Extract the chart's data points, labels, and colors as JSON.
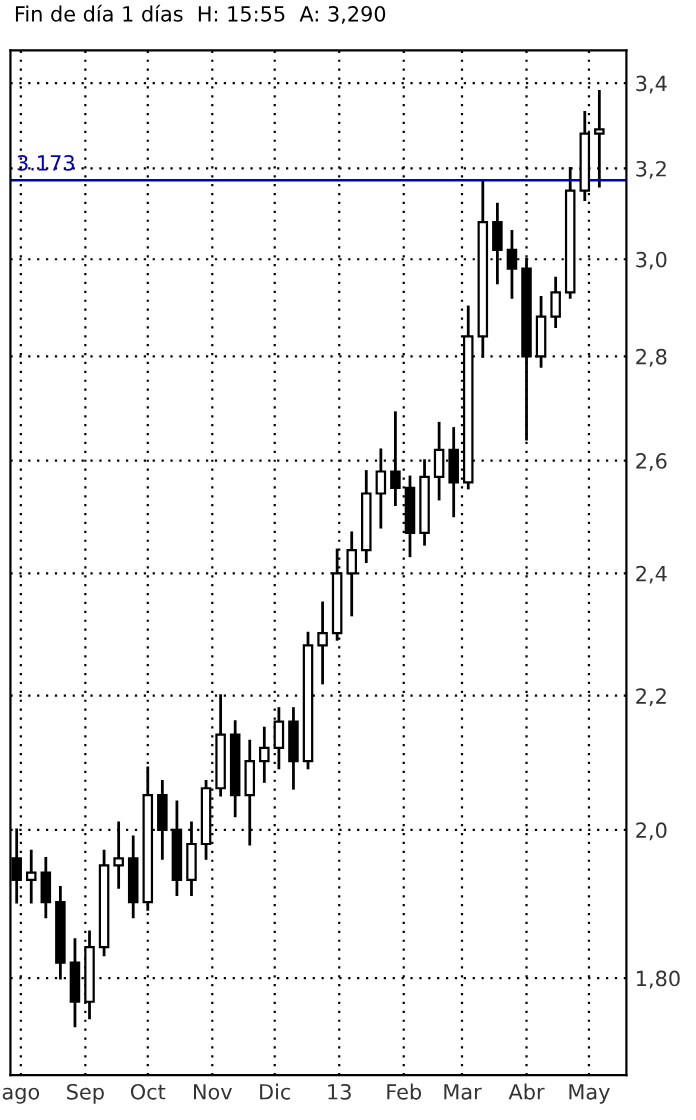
{
  "chart_data": {
    "type": "candlestick",
    "title": "Fin de día 1 días  H: 15:55  A: 3,290",
    "x": [
      "2012-07-30",
      "2012-08-06",
      "2012-08-13",
      "2012-08-20",
      "2012-08-27",
      "2012-09-03",
      "2012-09-10",
      "2012-09-17",
      "2012-09-24",
      "2012-10-01",
      "2012-10-08",
      "2012-10-15",
      "2012-10-22",
      "2012-10-29",
      "2012-11-05",
      "2012-11-12",
      "2012-11-19",
      "2012-11-26",
      "2012-12-03",
      "2012-12-10",
      "2012-12-17",
      "2012-12-24",
      "2012-12-31",
      "2013-01-07",
      "2013-01-14",
      "2013-01-21",
      "2013-01-28",
      "2013-02-04",
      "2013-02-11",
      "2013-02-18",
      "2013-02-25",
      "2013-03-04",
      "2013-03-11",
      "2013-03-18",
      "2013-03-25",
      "2013-04-01",
      "2013-04-08",
      "2013-04-15",
      "2013-04-22",
      "2013-04-29",
      "2013-05-06"
    ],
    "ohlc": [
      [
        1.96,
        2.0,
        1.9,
        1.93
      ],
      [
        1.93,
        1.97,
        1.9,
        1.94
      ],
      [
        1.94,
        1.96,
        1.88,
        1.9
      ],
      [
        1.9,
        1.92,
        1.8,
        1.82
      ],
      [
        1.82,
        1.85,
        1.74,
        1.77
      ],
      [
        1.77,
        1.86,
        1.75,
        1.84
      ],
      [
        1.84,
        1.97,
        1.83,
        1.95
      ],
      [
        1.95,
        2.01,
        1.92,
        1.96
      ],
      [
        1.96,
        1.99,
        1.88,
        1.9
      ],
      [
        1.9,
        2.09,
        1.89,
        2.05
      ],
      [
        2.05,
        2.07,
        1.96,
        2.0
      ],
      [
        2.0,
        2.04,
        1.91,
        1.93
      ],
      [
        1.93,
        2.01,
        1.91,
        1.98
      ],
      [
        1.98,
        2.07,
        1.96,
        2.06
      ],
      [
        2.06,
        2.2,
        2.05,
        2.14
      ],
      [
        2.14,
        2.16,
        2.02,
        2.05
      ],
      [
        2.05,
        2.13,
        1.98,
        2.1
      ],
      [
        2.1,
        2.15,
        2.07,
        2.12
      ],
      [
        2.12,
        2.18,
        2.09,
        2.16
      ],
      [
        2.16,
        2.18,
        2.06,
        2.1
      ],
      [
        2.1,
        2.3,
        2.09,
        2.28
      ],
      [
        2.28,
        2.35,
        2.22,
        2.3
      ],
      [
        2.3,
        2.44,
        2.29,
        2.4
      ],
      [
        2.4,
        2.47,
        2.33,
        2.44
      ],
      [
        2.44,
        2.58,
        2.42,
        2.54
      ],
      [
        2.54,
        2.62,
        2.48,
        2.58
      ],
      [
        2.58,
        2.69,
        2.52,
        2.55
      ],
      [
        2.55,
        2.57,
        2.43,
        2.47
      ],
      [
        2.47,
        2.6,
        2.45,
        2.57
      ],
      [
        2.57,
        2.67,
        2.53,
        2.62
      ],
      [
        2.62,
        2.66,
        2.5,
        2.56
      ],
      [
        2.56,
        2.9,
        2.55,
        2.84
      ],
      [
        2.84,
        3.17,
        2.8,
        3.08
      ],
      [
        3.08,
        3.12,
        2.95,
        3.02
      ],
      [
        3.02,
        3.06,
        2.92,
        2.98
      ],
      [
        2.98,
        3.0,
        2.64,
        2.8
      ],
      [
        2.8,
        2.92,
        2.78,
        2.88
      ],
      [
        2.88,
        2.96,
        2.86,
        2.93
      ],
      [
        2.93,
        3.2,
        2.92,
        3.15
      ],
      [
        3.15,
        3.33,
        3.13,
        3.28
      ],
      [
        3.28,
        3.38,
        3.16,
        3.29
      ]
    ],
    "color": "#000000",
    "log": "y",
    "xlim": [
      "2012-07-27",
      "2013-05-19"
    ],
    "xticks": [
      {
        "value": "2012-08-01",
        "label": "ago"
      },
      {
        "value": "2012-09-01",
        "label": "Sep"
      },
      {
        "value": "2012-10-01",
        "label": "Oct"
      },
      {
        "value": "2012-11-01",
        "label": "Nov"
      },
      {
        "value": "2012-12-01",
        "label": "Dic"
      },
      {
        "value": "2013-01-01",
        "label": "13"
      },
      {
        "value": "2013-02-01",
        "label": "Feb"
      },
      {
        "value": "2013-03-01",
        "label": "Mar"
      },
      {
        "value": "2013-04-01",
        "label": "Abr"
      },
      {
        "value": "2013-05-01",
        "label": "May"
      }
    ],
    "ylim": [
      1.68,
      3.48
    ],
    "yticks": [
      {
        "value": 1.8,
        "label": "1,80"
      },
      {
        "value": 2.0,
        "label": "2,0"
      },
      {
        "value": 2.2,
        "label": "2,2"
      },
      {
        "value": 2.4,
        "label": "2,4"
      },
      {
        "value": 2.6,
        "label": "2,6"
      },
      {
        "value": 2.8,
        "label": "2,8"
      },
      {
        "value": 3.0,
        "label": "3,0"
      },
      {
        "value": 3.2,
        "label": "3,2"
      },
      {
        "value": 3.4,
        "label": "3,4"
      }
    ],
    "ref_lines": [
      {
        "axis": "y",
        "value": 3.173,
        "label": "3.173",
        "color": "#0000c0"
      }
    ],
    "grid": true
  }
}
